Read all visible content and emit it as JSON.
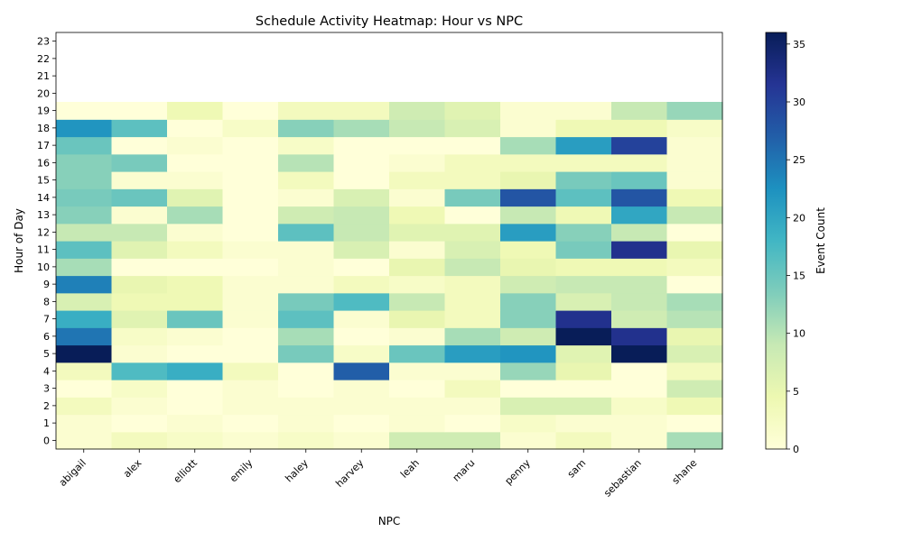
{
  "chart_data": {
    "type": "heatmap",
    "title": "Schedule Activity Heatmap: Hour vs NPC",
    "xlabel": "NPC",
    "ylabel": "Hour of Day",
    "colorbar_label": "Event Count",
    "colormap": "YlGnBu",
    "vmin": 0,
    "vmax": 36,
    "colorbar_ticks": [
      0,
      5,
      10,
      15,
      20,
      25,
      30,
      35
    ],
    "x_categories": [
      "abigail",
      "alex",
      "elliott",
      "emily",
      "haley",
      "harvey",
      "leah",
      "maru",
      "penny",
      "sam",
      "sebastian",
      "shane"
    ],
    "y_categories": [
      "0",
      "1",
      "2",
      "3",
      "4",
      "5",
      "6",
      "7",
      "8",
      "9",
      "10",
      "11",
      "12",
      "13",
      "14",
      "15",
      "16",
      "17",
      "18",
      "19",
      "20",
      "21",
      "22",
      "23"
    ],
    "values": [
      [
        1,
        3,
        2,
        1,
        2,
        1,
        8,
        8,
        1,
        3,
        1,
        11
      ],
      [
        1,
        0,
        1,
        0,
        1,
        0,
        1,
        0,
        2,
        1,
        1,
        0
      ],
      [
        3,
        1,
        0,
        1,
        1,
        1,
        1,
        1,
        7,
        7,
        2,
        4
      ],
      [
        0,
        2,
        0,
        1,
        0,
        1,
        0,
        3,
        0,
        0,
        0,
        8
      ],
      [
        3,
        17,
        19,
        3,
        0,
        27,
        1,
        1,
        12,
        5,
        0,
        3
      ],
      [
        36,
        1,
        0,
        0,
        14,
        2,
        15,
        21,
        22,
        6,
        36,
        7
      ],
      [
        25,
        2,
        1,
        0,
        11,
        0,
        1,
        11,
        8,
        36,
        32,
        5
      ],
      [
        19,
        6,
        15,
        1,
        16,
        1,
        5,
        3,
        13,
        32,
        8,
        10
      ],
      [
        7,
        4,
        4,
        1,
        14,
        17,
        9,
        3,
        13,
        7,
        9,
        11
      ],
      [
        24,
        5,
        4,
        1,
        1,
        3,
        2,
        3,
        8,
        9,
        9,
        0
      ],
      [
        11,
        0,
        0,
        0,
        1,
        0,
        5,
        9,
        5,
        4,
        4,
        3
      ],
      [
        16,
        6,
        3,
        1,
        1,
        7,
        1,
        7,
        4,
        14,
        32,
        5
      ],
      [
        9,
        9,
        1,
        0,
        16,
        9,
        6,
        6,
        21,
        13,
        9,
        0
      ],
      [
        13,
        1,
        11,
        0,
        8,
        9,
        4,
        0,
        9,
        4,
        20,
        9
      ],
      [
        14,
        15,
        6,
        0,
        1,
        7,
        1,
        14,
        28,
        16,
        28,
        4
      ],
      [
        13,
        1,
        1,
        0,
        3,
        0,
        3,
        3,
        5,
        14,
        15,
        1
      ],
      [
        13,
        14,
        0,
        0,
        10,
        0,
        1,
        3,
        3,
        3,
        3,
        1
      ],
      [
        15,
        0,
        1,
        0,
        2,
        0,
        0,
        0,
        11,
        21,
        30,
        1
      ],
      [
        22,
        16,
        0,
        2,
        13,
        11,
        9,
        7,
        1,
        4,
        4,
        2
      ],
      [
        0,
        0,
        4,
        0,
        3,
        3,
        8,
        6,
        1,
        1,
        9,
        12
      ],
      [
        null,
        null,
        null,
        null,
        null,
        null,
        null,
        null,
        null,
        null,
        null,
        null
      ],
      [
        null,
        null,
        null,
        null,
        null,
        null,
        null,
        null,
        null,
        null,
        null,
        null
      ],
      [
        null,
        null,
        null,
        null,
        null,
        null,
        null,
        null,
        null,
        null,
        null,
        null
      ],
      [
        null,
        null,
        null,
        null,
        null,
        null,
        null,
        null,
        null,
        null,
        null,
        null
      ]
    ],
    "grid": false
  }
}
